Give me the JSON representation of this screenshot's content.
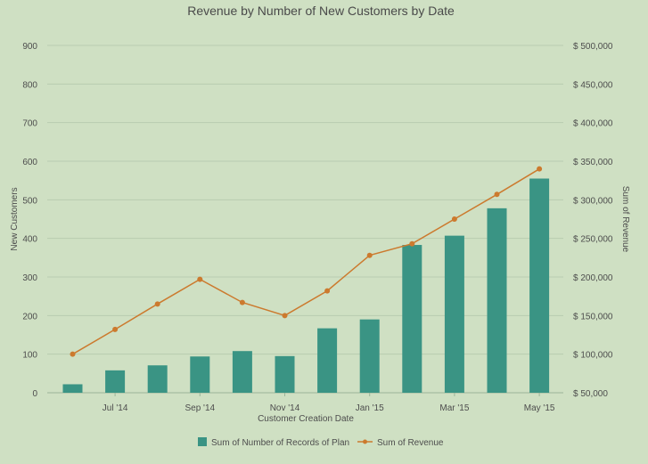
{
  "chart_data": {
    "type": "bar+line",
    "title": "Revenue by Number of New Customers by Date",
    "xlabel": "Customer Creation Date",
    "ylabel_left": "New Customers",
    "ylabel_right": "Sum of Revenue",
    "x_tick_labels": [
      "Jul '14",
      "Sep '14",
      "Nov '14",
      "Jan '15",
      "Mar '15",
      "May '15"
    ],
    "x_tick_indices": [
      1,
      3,
      5,
      7,
      9,
      11
    ],
    "left_axis": {
      "min": 0,
      "max": 900,
      "step": 100,
      "ticks": [
        "0",
        "100",
        "200",
        "300",
        "400",
        "500",
        "600",
        "700",
        "800",
        "900"
      ]
    },
    "right_axis": {
      "min": 50000,
      "max": 500000,
      "step": 50000,
      "ticks": [
        "$ 50,000",
        "$ 100,000",
        "$ 150,000",
        "$ 200,000",
        "$ 250,000",
        "$ 300,000",
        "$ 350,000",
        "$ 400,000",
        "$ 450,000",
        "$ 500,000"
      ]
    },
    "grid": true,
    "legend_position": "bottom-center",
    "series": [
      {
        "name": "Sum of Number of Records of Plan",
        "type": "bar",
        "axis": "left",
        "color": "#3a9484",
        "values": [
          22,
          58,
          71,
          94,
          108,
          95,
          167,
          190,
          383,
          407,
          478,
          555
        ]
      },
      {
        "name": "Sum of Revenue",
        "type": "line",
        "axis": "right",
        "color": "#cc7a2e",
        "values": [
          100000,
          132000,
          165000,
          197000,
          167000,
          150000,
          182000,
          228000,
          243000,
          275000,
          307000,
          340000
        ]
      }
    ]
  }
}
